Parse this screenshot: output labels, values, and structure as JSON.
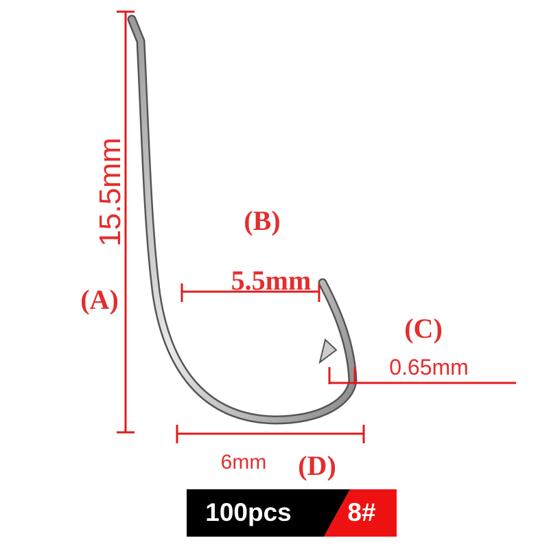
{
  "dimensions": [
    {
      "label": "(A)",
      "size": "15.5mm"
    },
    {
      "label": "(B)",
      "size": "5.5mm"
    },
    {
      "label": "(C)",
      "size": "0.65mm"
    },
    {
      "label": "(D)",
      "size": "6mm"
    }
  ],
  "badge": {
    "quantity": "100pcs",
    "size": "8#"
  }
}
